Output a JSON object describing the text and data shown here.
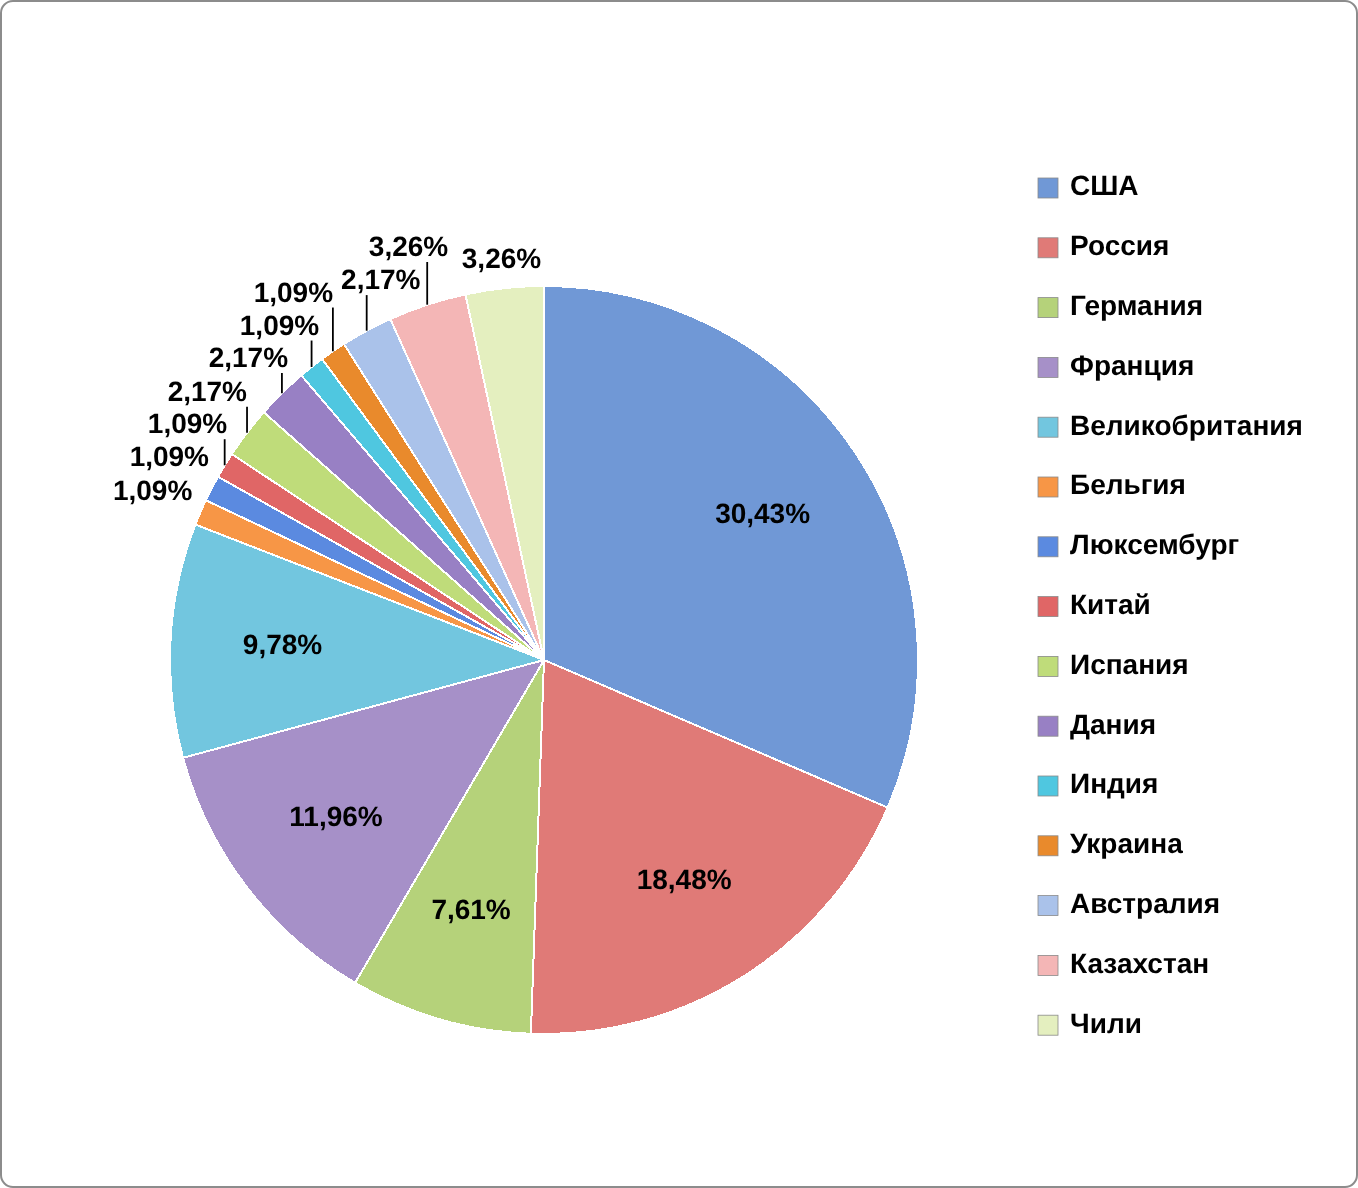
{
  "chart_data": {
    "type": "pie",
    "categories": [
      "США",
      "Россия",
      "Германия",
      "Франция",
      "Великобритания",
      "Бельгия",
      "Люксембург",
      "Китай",
      "Испания",
      "Дания",
      "Индия",
      "Украина",
      "Австралия",
      "Казахстан",
      "Чили"
    ],
    "values": [
      30.43,
      18.48,
      7.61,
      11.96,
      9.78,
      1.09,
      1.09,
      1.09,
      2.17,
      2.17,
      1.09,
      1.09,
      2.17,
      3.26,
      3.26
    ],
    "value_labels": [
      "30,43%",
      "18,48%",
      "7,61%",
      "11,96%",
      "9,78%",
      "1,09%",
      "1,09%",
      "1,09%",
      "2,17%",
      "2,17%",
      "1,09%",
      "1,09%",
      "2,17%",
      "3,26%",
      "3,26%"
    ],
    "colors": [
      "#7098d6",
      "#e07a77",
      "#b5d27a",
      "#a690c8",
      "#72c6df",
      "#f79646",
      "#5b8ae0",
      "#e06666",
      "#bfdc7a",
      "#9880c4",
      "#4fc7e0",
      "#e98a2c",
      "#aac2ea",
      "#f4b6b6",
      "#e4efbf"
    ],
    "legend": "right"
  }
}
